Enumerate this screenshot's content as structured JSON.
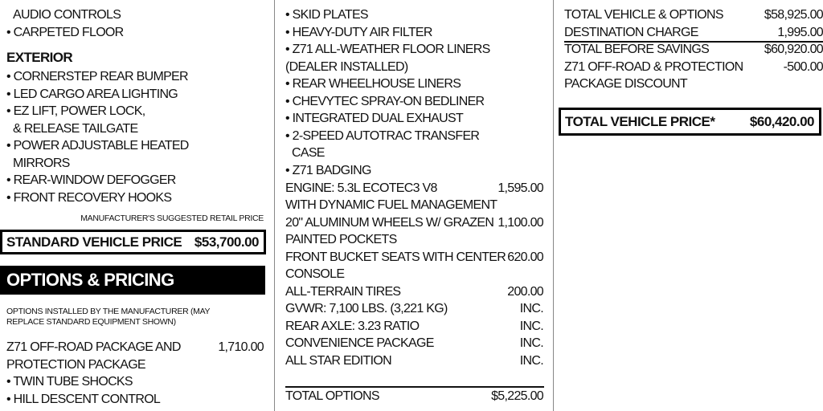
{
  "col1": {
    "rows": [
      {
        "text": "AUDIO CONTROLS",
        "indent": true
      },
      {
        "text": "• CARPETED FLOOR"
      }
    ],
    "exterior_heading": "EXTERIOR",
    "exterior_items": [
      {
        "text": "• CORNERSTEP REAR BUMPER"
      },
      {
        "text": "• LED CARGO AREA LIGHTING"
      },
      {
        "text": "• EZ LIFT, POWER LOCK,"
      },
      {
        "text": "& RELEASE TAILGATE",
        "indent": true
      },
      {
        "text": "• POWER ADJUSTABLE HEATED"
      },
      {
        "text": "MIRRORS",
        "indent": true
      },
      {
        "text": "• REAR-WINDOW DEFOGGER"
      },
      {
        "text": "• FRONT RECOVERY HOOKS"
      }
    ],
    "msrp_label": "MANUFACTURER'S SUGGESTED RETAIL PRICE",
    "standard_price_label": "STANDARD VEHICLE PRICE",
    "standard_price_value": "$53,700.00",
    "options_heading": "OPTIONS & PRICING",
    "options_note": "OPTIONS INSTALLED BY THE MANUFACTURER (MAY REPLACE STANDARD EQUIPMENT SHOWN)",
    "option_rows": [
      {
        "text": "Z71 OFF-ROAD PACKAGE AND",
        "value": "1,710.00"
      },
      {
        "text": "PROTECTION PACKAGE"
      },
      {
        "text": "• TWIN TUBE SHOCKS"
      },
      {
        "text": "• HILL DESCENT CONTROL"
      }
    ]
  },
  "col2": {
    "rows": [
      {
        "text": "• SKID PLATES"
      },
      {
        "text": "• HEAVY-DUTY AIR FILTER"
      },
      {
        "text": "• Z71 ALL-WEATHER FLOOR LINERS"
      },
      {
        "text": "(DEALER INSTALLED)"
      },
      {
        "text": "• REAR WHEELHOUSE LINERS"
      },
      {
        "text": "• CHEVYTEC SPRAY-ON BEDLINER"
      },
      {
        "text": "• INTEGRATED DUAL EXHAUST"
      },
      {
        "text": "• 2-SPEED AUTOTRAC TRANSFER"
      },
      {
        "text": "CASE",
        "indent": true
      },
      {
        "text": "• Z71 BADGING"
      },
      {
        "text": "ENGINE:  5.3L ECOTEC3 V8",
        "value": "1,595.00"
      },
      {
        "text": "WITH DYNAMIC FUEL MANAGEMENT"
      },
      {
        "text": "20\" ALUMINUM WHEELS W/ GRAZEN",
        "value": "1,100.00"
      },
      {
        "text": "PAINTED POCKETS"
      },
      {
        "text": "FRONT BUCKET SEATS WITH CENTER",
        "value": "620.00"
      },
      {
        "text": "CONSOLE"
      },
      {
        "text": "ALL-TERRAIN TIRES",
        "value": "200.00"
      },
      {
        "text": "GVWR: 7,100 LBS. (3,221 KG)",
        "value": "INC."
      },
      {
        "text": "REAR AXLE: 3.23 RATIO",
        "value": "INC."
      },
      {
        "text": "CONVENIENCE PACKAGE",
        "value": "INC."
      },
      {
        "text": "ALL STAR EDITION",
        "value": "INC."
      }
    ],
    "total_options_label": "TOTAL OPTIONS",
    "total_options_value": "$5,225.00"
  },
  "col3": {
    "rows": [
      {
        "text": "TOTAL VEHICLE & OPTIONS",
        "value": "$58,925.00"
      },
      {
        "text": "DESTINATION CHARGE",
        "value": "1,995.00"
      },
      {
        "text": "TOTAL BEFORE SAVINGS",
        "value": "$60,920.00"
      },
      {
        "text": "Z71 OFF-ROAD & PROTECTION",
        "value": "-500.00"
      },
      {
        "text": "PACKAGE DISCOUNT"
      }
    ],
    "total_price_label": "TOTAL VEHICLE PRICE*",
    "total_price_value": "$60,420.00"
  }
}
